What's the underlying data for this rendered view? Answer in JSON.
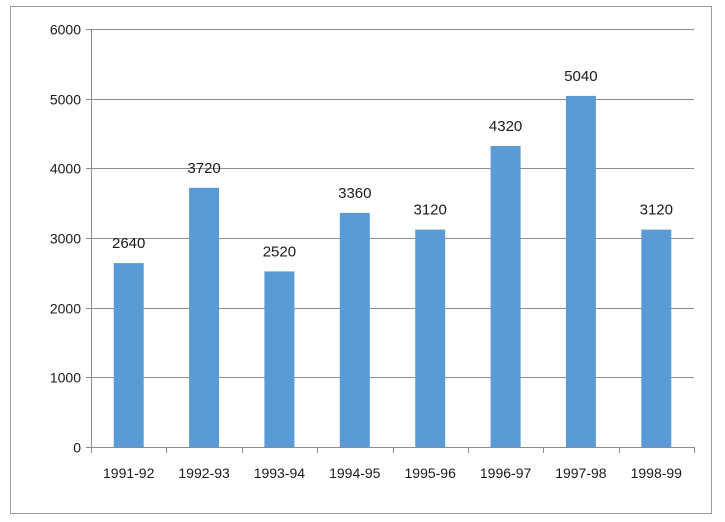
{
  "colors": {
    "bar": "#5b9bd5",
    "grid": "#8c8c8c",
    "axis": "#8c8c8c",
    "frame": "#9a9a9a"
  },
  "chart_data": {
    "type": "bar",
    "title": "",
    "xlabel": "",
    "ylabel": "",
    "categories": [
      "1991-92",
      "1992-93",
      "1993-94",
      "1994-95",
      "1995-96",
      "1996-97",
      "1997-98",
      "1998-99"
    ],
    "values": [
      2640,
      3720,
      2520,
      3360,
      3120,
      4320,
      5040,
      3120
    ],
    "data_labels": [
      "2640",
      "3720",
      "2520",
      "3360",
      "3120",
      "4320",
      "5040",
      "3120"
    ],
    "ylim": [
      0,
      6000
    ],
    "yticks": [
      "0",
      "1000",
      "2000",
      "3000",
      "4000",
      "5000",
      "6000"
    ],
    "grid": true,
    "legend": "none"
  }
}
